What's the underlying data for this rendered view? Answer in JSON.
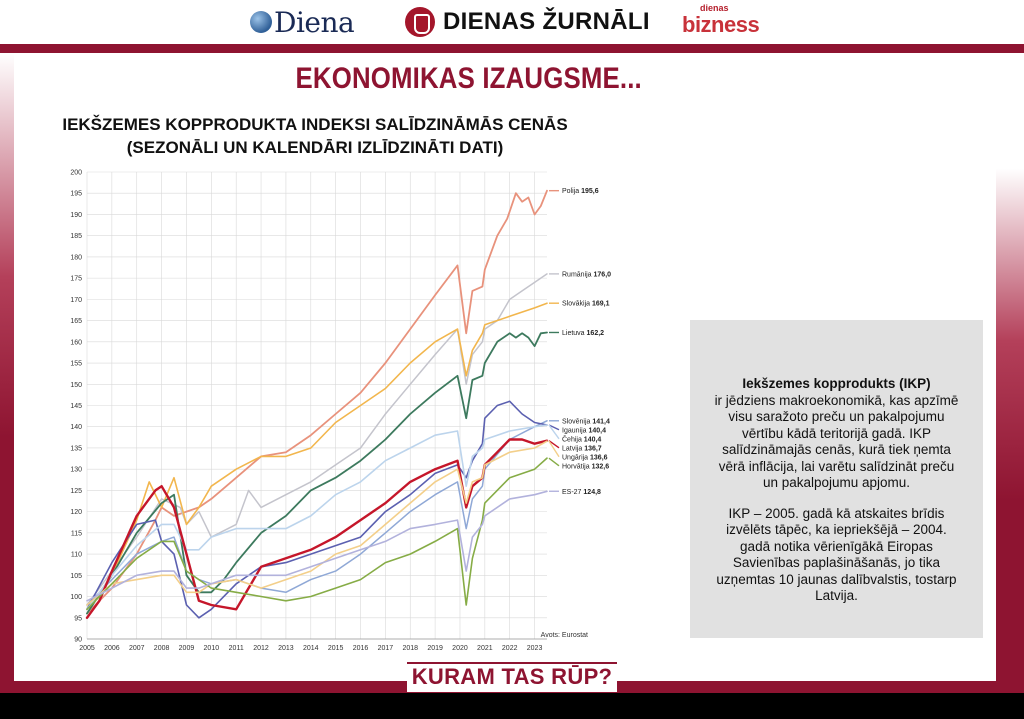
{
  "brands": {
    "diena": "Diena",
    "dienas_zurnali": "DIENAS ŽURNĀLI",
    "dienas_bizness_small": "dienas",
    "dienas_bizness_big": "bizness"
  },
  "headline": "EKONOMIKAS IZAUGSME...",
  "tagline": "KURAM TAS RŪP?",
  "colors": {
    "frame": "#8e1431",
    "info_bg": "#e1e1e1"
  },
  "info": {
    "term": "Iekšzemes kopprodukts (IKP)",
    "definition": "ir jēdziens makroekonomikā, kas apzīmē visu saražoto preču un pakalpojumu vērtību kādā teritorijā gadā. IKP salīdzināmajās cenās, kurā tiek ņemta vērā inflācija, lai varētu salīdzināt preču un pakalpojumu apjomu.",
    "note": "IKP – 2005. gadā kā atskaites brīdis izvēlēts tāpēc, ka iepriekšējā – 2004. gadā notika vērienīgākā Eiropas Savienības paplašināšanās, jo tika uzņemtas 10 jaunas dalībvalstis, tostarp Latvija."
  },
  "chart_data": {
    "type": "line",
    "title": [
      "IEKŠZEMES KOPPRODUKTA INDEKSI SALĪDZINĀMĀS CENĀS",
      "(SEZONĀLI UN KALENDĀRI IZLĪDZINĀTI DATI)"
    ],
    "source": "Avots: Eurostat",
    "xlim": [
      2005,
      2023.5
    ],
    "ylim": [
      90,
      200
    ],
    "yticks": [
      90,
      95,
      100,
      105,
      110,
      115,
      120,
      125,
      130,
      135,
      140,
      145,
      150,
      155,
      160,
      165,
      170,
      175,
      180,
      185,
      190,
      195,
      200
    ],
    "xticks": [
      "2005",
      "2006",
      "2007",
      "2008",
      "2009",
      "2010",
      "2011",
      "2012",
      "2013",
      "2014",
      "2015",
      "2016",
      "2017",
      "2018",
      "2019",
      "2020",
      "2021",
      "2022",
      "2023"
    ],
    "grid": true,
    "series": [
      {
        "name": "Polija",
        "end_label": "195,6",
        "color": "#e8927c",
        "width": 1.8,
        "x": [
          2005,
          2006,
          2007,
          2007.75,
          2008,
          2008.5,
          2009,
          2009.5,
          2010,
          2011,
          2012,
          2013,
          2014,
          2015,
          2016,
          2017,
          2018,
          2019,
          2019.9,
          2020.25,
          2020.5,
          2020.9,
          2021,
          2021.5,
          2021.9,
          2022.25,
          2022.5,
          2022.75,
          2023,
          2023.25,
          2023.5
        ],
        "y": [
          96,
          102,
          110,
          118,
          121,
          119,
          120,
          121,
          123,
          128,
          133,
          134,
          138,
          143,
          148,
          155,
          163,
          171,
          178,
          162,
          172,
          173,
          177,
          185,
          189,
          195,
          193,
          194,
          190,
          192,
          195.6
        ]
      },
      {
        "name": "Rumānija",
        "end_label": "176,0",
        "color": "#c4c4cc",
        "width": 1.5,
        "x": [
          2005,
          2006,
          2007,
          2008,
          2008.75,
          2009,
          2009.5,
          2010,
          2011,
          2011.5,
          2012,
          2013,
          2014,
          2015,
          2016,
          2017,
          2018,
          2019,
          2019.9,
          2020.25,
          2020.5,
          2020.9,
          2021,
          2021.5,
          2022,
          2022.5,
          2023,
          2023.5
        ],
        "y": [
          98,
          106,
          114,
          123,
          121,
          117,
          120,
          114,
          117,
          125,
          121,
          124,
          127,
          131,
          135,
          143,
          150,
          157,
          163,
          150,
          157,
          160,
          163,
          165,
          170,
          172,
          174,
          176
        ]
      },
      {
        "name": "Slovākija",
        "end_label": "169,1",
        "color": "#f2b64d",
        "width": 1.6,
        "x": [
          2005,
          2006,
          2007,
          2007.5,
          2008,
          2008.5,
          2009,
          2009.5,
          2010,
          2011,
          2012,
          2013,
          2014,
          2015,
          2016,
          2017,
          2018,
          2019,
          2019.9,
          2020.25,
          2020.5,
          2020.9,
          2021,
          2022,
          2023,
          2023.5
        ],
        "y": [
          97,
          105,
          118,
          127,
          121,
          128,
          117,
          121,
          126,
          130,
          133,
          133,
          135,
          141,
          145,
          149,
          155,
          160,
          163,
          152,
          158,
          162,
          164,
          166,
          168,
          169.1
        ]
      },
      {
        "name": "Lietuva",
        "end_label": "162,2",
        "color": "#3d7a5e",
        "width": 1.8,
        "x": [
          2005,
          2006,
          2007,
          2008,
          2008.5,
          2009,
          2009.5,
          2010,
          2010.5,
          2011,
          2012,
          2013,
          2014,
          2015,
          2016,
          2017,
          2018,
          2019,
          2019.9,
          2020.25,
          2020.5,
          2020.9,
          2021,
          2021.5,
          2022,
          2022.25,
          2022.5,
          2022.75,
          2023,
          2023.25,
          2023.5
        ],
        "y": [
          96,
          105,
          115,
          122,
          124,
          105,
          101,
          101,
          104,
          108,
          115,
          119,
          125,
          128,
          132,
          137,
          143,
          148,
          152,
          142,
          151,
          152,
          155,
          160,
          162,
          161,
          162,
          161,
          159,
          162,
          162.2
        ]
      },
      {
        "name": "Slovēnija",
        "end_label": "141,4",
        "color": "#8fa8d6",
        "width": 1.5,
        "x": [
          2005,
          2006,
          2007,
          2008,
          2008.5,
          2009,
          2009.5,
          2010,
          2011,
          2012,
          2013,
          2014,
          2015,
          2016,
          2017,
          2018,
          2019,
          2019.9,
          2020.25,
          2020.5,
          2020.9,
          2021,
          2022,
          2023,
          2023.5
        ],
        "y": [
          98,
          104,
          110,
          113,
          114,
          106,
          104,
          103,
          104,
          102,
          101,
          104,
          106,
          110,
          115,
          120,
          124,
          127,
          116,
          123,
          126,
          130,
          137,
          140,
          141.4
        ]
      },
      {
        "name": "Igaunija",
        "end_label": "140,4",
        "color": "#5b60b0",
        "width": 1.6,
        "x": [
          2005,
          2006,
          2007,
          2007.75,
          2008,
          2008.5,
          2009,
          2009.5,
          2010,
          2011,
          2012,
          2013,
          2014,
          2015,
          2016,
          2017,
          2018,
          2019,
          2019.9,
          2020.25,
          2020.5,
          2020.9,
          2021,
          2021.5,
          2022,
          2022.5,
          2023,
          2023.5
        ],
        "y": [
          97,
          108,
          117,
          118,
          113,
          110,
          98,
          95,
          97,
          103,
          107,
          108,
          110,
          112,
          114,
          120,
          124,
          129,
          131,
          128,
          132,
          136,
          142,
          145,
          146,
          143,
          141,
          140.4
        ]
      },
      {
        "name": "Čehija",
        "end_label": "140,4",
        "color": "#bcd4ec",
        "width": 1.6,
        "x": [
          2005,
          2006,
          2007,
          2008,
          2008.5,
          2009,
          2009.5,
          2010,
          2011,
          2012,
          2013,
          2014,
          2015,
          2016,
          2017,
          2018,
          2019,
          2019.9,
          2020.25,
          2020.5,
          2020.9,
          2021,
          2022,
          2023,
          2023.5
        ],
        "y": [
          97,
          105,
          112,
          117,
          117,
          111,
          111,
          114,
          116,
          116,
          116,
          119,
          124,
          127,
          132,
          135,
          138,
          139,
          126,
          133,
          135,
          137,
          139,
          140,
          140.4
        ]
      },
      {
        "name": "Latvija",
        "end_label": "136,7",
        "color": "#c5162a",
        "width": 2.4,
        "x": [
          2005,
          2005.5,
          2006,
          2007,
          2007.75,
          2008,
          2008.5,
          2009,
          2009.5,
          2010,
          2011,
          2011.5,
          2012,
          2013,
          2014,
          2015,
          2016,
          2017,
          2018,
          2019,
          2019.9,
          2020.25,
          2020.5,
          2020.9,
          2021,
          2021.5,
          2022,
          2022.5,
          2023,
          2023.5
        ],
        "y": [
          95,
          99,
          106,
          119,
          125,
          126,
          121,
          110,
          99,
          98,
          97,
          102,
          107,
          109,
          111,
          114,
          118,
          122,
          127,
          130,
          132,
          121,
          126,
          128,
          131,
          134,
          137,
          137,
          136,
          136.7
        ]
      },
      {
        "name": "Ungārija",
        "end_label": "136,6",
        "color": "#f3cf8a",
        "width": 1.6,
        "x": [
          2005,
          2006,
          2007,
          2008,
          2008.5,
          2009,
          2009.5,
          2010,
          2011,
          2012,
          2013,
          2014,
          2015,
          2016,
          2017,
          2018,
          2019,
          2019.9,
          2020.25,
          2020.5,
          2020.9,
          2021,
          2022,
          2023,
          2023.5
        ],
        "y": [
          98,
          103,
          104,
          105,
          105,
          101,
          101,
          103,
          104,
          102,
          104,
          106,
          110,
          112,
          117,
          122,
          127,
          130,
          122,
          127,
          128,
          131,
          134,
          135,
          136.6
        ]
      },
      {
        "name": "Horvātija",
        "end_label": "132,6",
        "color": "#86ac46",
        "width": 1.6,
        "x": [
          2005,
          2006,
          2007,
          2008,
          2008.5,
          2009,
          2009.5,
          2010,
          2011,
          2012,
          2013,
          2014,
          2015,
          2016,
          2017,
          2018,
          2019,
          2019.9,
          2020.25,
          2020.5,
          2020.9,
          2021,
          2022,
          2023,
          2023.5
        ],
        "y": [
          97,
          103,
          109,
          113,
          113,
          106,
          104,
          102,
          101,
          100,
          99,
          100,
          102,
          104,
          108,
          110,
          113,
          116,
          98,
          109,
          118,
          122,
          128,
          130,
          132.6
        ]
      },
      {
        "name": "ES-27",
        "end_label": "124,8",
        "color": "#b2b2dc",
        "width": 1.6,
        "x": [
          2005,
          2006,
          2007,
          2008,
          2008.5,
          2009,
          2009.5,
          2010,
          2011,
          2012,
          2013,
          2014,
          2015,
          2016,
          2017,
          2018,
          2019,
          2019.9,
          2020.25,
          2020.5,
          2020.9,
          2021,
          2022,
          2023,
          2023.5
        ],
        "y": [
          99,
          102,
          105,
          106,
          106,
          102,
          102,
          103,
          105,
          105,
          105,
          107,
          109,
          111,
          113,
          116,
          117,
          118,
          106,
          114,
          117,
          119,
          123,
          124,
          124.8
        ]
      }
    ]
  }
}
